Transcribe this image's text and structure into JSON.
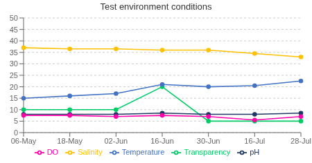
{
  "chart_data": {
    "type": "line",
    "title": "Test environment conditions",
    "categories": [
      "06-May",
      "18-May",
      "02-Jun",
      "16-Jun",
      "30-Jun",
      "16-Jul",
      "28-Jul"
    ],
    "series": [
      {
        "name": "Transparency",
        "color": "#00CC66",
        "values": [
          10,
          10,
          10,
          20,
          5,
          5,
          5
        ]
      },
      {
        "name": "Salinity",
        "color": "#FFC000",
        "values": [
          37,
          36.5,
          36.5,
          36,
          36,
          34.5,
          33
        ]
      },
      {
        "name": "pH",
        "color": "#1F3864",
        "values": [
          8,
          8,
          8,
          8.5,
          8,
          8,
          8.5
        ]
      },
      {
        "name": "Temperature",
        "color": "#4472C4",
        "values": [
          15,
          16,
          17,
          21,
          20,
          20.5,
          22.5
        ]
      },
      {
        "name": "DO",
        "color": "#FF00AA",
        "values": [
          7.5,
          7.5,
          7,
          7.5,
          7,
          5.5,
          7
        ]
      }
    ],
    "marker": "circle",
    "ylim": [
      0,
      50
    ],
    "yticks": [
      0,
      5,
      10,
      15,
      20,
      25,
      30,
      35,
      40,
      45,
      50
    ],
    "grid": true,
    "legend": "bottom"
  }
}
